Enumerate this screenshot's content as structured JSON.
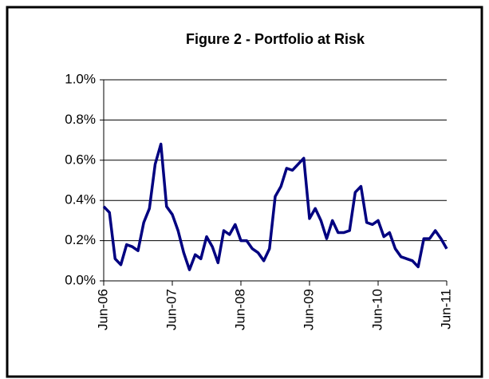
{
  "chart_data": {
    "type": "line",
    "title": "Figure 2 - Portfolio at Risk",
    "categories": [
      "Jun-06",
      null,
      null,
      null,
      null,
      null,
      null,
      null,
      null,
      null,
      null,
      null,
      "Jun-07",
      null,
      null,
      null,
      null,
      null,
      null,
      null,
      null,
      null,
      null,
      null,
      "Jun-08",
      null,
      null,
      null,
      null,
      null,
      null,
      null,
      null,
      null,
      null,
      null,
      "Jun-09",
      null,
      null,
      null,
      null,
      null,
      null,
      null,
      null,
      null,
      null,
      null,
      "Jun-10",
      null,
      null,
      null,
      null,
      null,
      null,
      null,
      null,
      null,
      null,
      null,
      "Jun-11"
    ],
    "series": [
      {
        "color": "#000080",
        "values": [
          0.37,
          0.34,
          0.11,
          0.08,
          0.18,
          0.17,
          0.15,
          0.29,
          0.36,
          0.58,
          0.68,
          0.37,
          0.33,
          0.25,
          0.14,
          0.055,
          0.13,
          0.11,
          0.22,
          0.17,
          0.09,
          0.25,
          0.23,
          0.28,
          0.2,
          0.2,
          0.16,
          0.14,
          0.1,
          0.16,
          0.42,
          0.47,
          0.56,
          0.55,
          0.58,
          0.61,
          0.31,
          0.36,
          0.3,
          0.21,
          0.3,
          0.24,
          0.24,
          0.25,
          0.44,
          0.47,
          0.29,
          0.28,
          0.3,
          0.22,
          0.24,
          0.16,
          0.12,
          0.11,
          0.1,
          0.07,
          0.21,
          0.21,
          0.25,
          0.21,
          0.16
        ]
      }
    ],
    "ylim": [
      0,
      1
    ],
    "yticks": [
      {
        "value": 0,
        "label": "0.0%"
      },
      {
        "value": 0.2,
        "label": "0.2%"
      },
      {
        "value": 0.4,
        "label": "0.4%"
      },
      {
        "value": 0.6,
        "label": "0.6%"
      },
      {
        "value": 0.8,
        "label": "0.8%"
      },
      {
        "value": 1,
        "label": "1.0%"
      }
    ],
    "grid": true
  }
}
